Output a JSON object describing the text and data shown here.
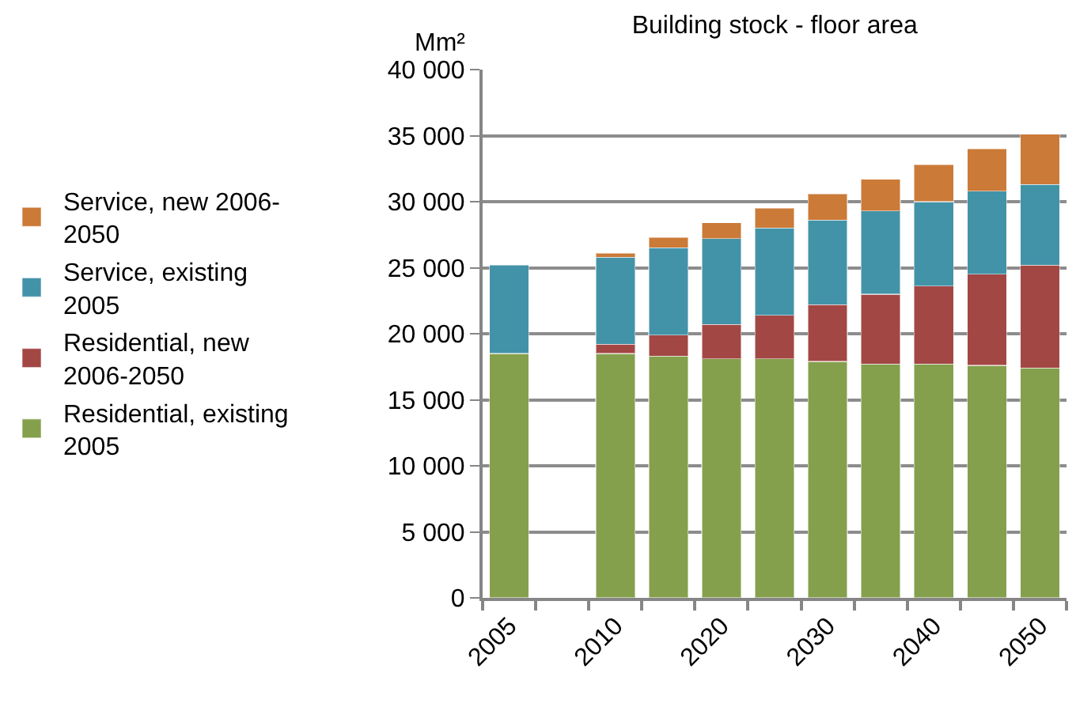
{
  "chart_data": {
    "type": "bar",
    "title": "Building stock - floor area",
    "ylabel": "Mm²",
    "stacked": true,
    "categories": [
      "2005",
      null,
      "2010",
      null,
      "2020",
      null,
      "2030",
      null,
      "2040",
      null,
      "2050"
    ],
    "series": [
      {
        "name": "Residential, existing 2005",
        "color": "#84a04c",
        "values": [
          18500,
          null,
          18500,
          18300,
          18100,
          18100,
          17900,
          17700,
          17700,
          17600,
          17400
        ]
      },
      {
        "name": "Residential, new 2006-2050",
        "color": "#a34745",
        "values": [
          null,
          null,
          700,
          1600,
          2600,
          3300,
          4300,
          5300,
          5900,
          6900,
          7800
        ]
      },
      {
        "name": "Service, existing 2005",
        "color": "#4393a8",
        "values": [
          6700,
          null,
          6600,
          6600,
          6500,
          6600,
          6400,
          6300,
          6400,
          6300,
          6100
        ]
      },
      {
        "name": "Service, new 2006-2050",
        "color": "#cb7a38",
        "values": [
          null,
          null,
          300,
          800,
          1200,
          1500,
          2000,
          2400,
          2800,
          3200,
          3800
        ]
      }
    ],
    "ylim": [
      0,
      40000
    ],
    "yticks": [
      0,
      {
        "value": 5000,
        "label": "5 000"
      },
      {
        "value": 10000,
        "label": "10 000"
      },
      {
        "value": 15000,
        "label": "15 000"
      },
      {
        "value": 20000,
        "label": "20 000"
      },
      {
        "value": 25000,
        "label": "25 000"
      },
      {
        "value": 30000,
        "label": "30 000"
      },
      {
        "value": 35000,
        "label": "35 000"
      },
      {
        "value": 40000,
        "label": "40 000"
      }
    ],
    "grid": "y",
    "legend": "left"
  }
}
